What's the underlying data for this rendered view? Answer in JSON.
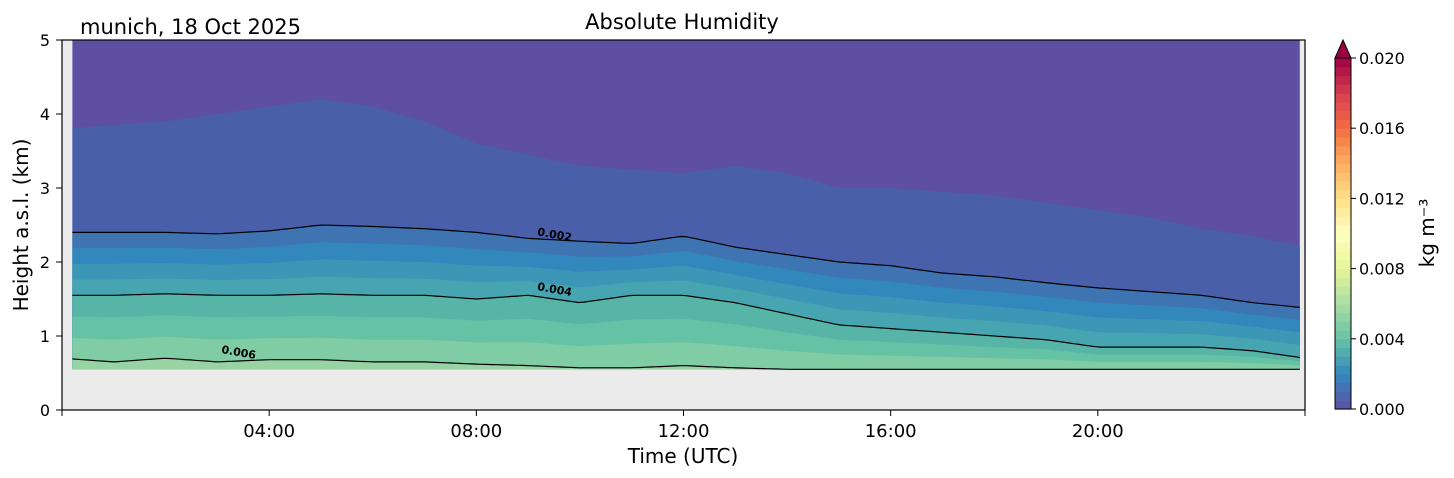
{
  "chart_data": {
    "type": "heatmap",
    "title": "Absolute Humidity",
    "subtitle": "munich, 18 Oct 2025",
    "xlabel": "Time (UTC)",
    "ylabel": "Height a.s.l. (km)",
    "xlim": [
      0,
      24
    ],
    "ylim": [
      0,
      5
    ],
    "x_ticks": [
      0,
      4,
      8,
      12,
      16,
      20,
      24
    ],
    "x_tick_labels": [
      "",
      "04:00",
      "08:00",
      "12:00",
      "16:00",
      "20:00",
      ""
    ],
    "y_ticks": [
      0,
      1,
      2,
      3,
      4,
      5
    ],
    "y_tick_labels": [
      "0",
      "1",
      "2",
      "3",
      "4",
      "5"
    ],
    "data_bottom_km": 0.55,
    "colorbar": {
      "label": "kg m⁻³",
      "min": 0.0,
      "max": 0.02,
      "ticks": [
        "0.000",
        "0.004",
        "0.008",
        "0.012",
        "0.016",
        "0.020"
      ],
      "extend": "max",
      "colormap": "Spectral_r"
    },
    "fill_levels": [
      0.0,
      0.001,
      0.002,
      0.0025,
      0.003,
      0.0035,
      0.004,
      0.0045,
      0.005,
      0.006
    ],
    "fill_colors": [
      "#5e4fa2",
      "#4a5fa9",
      "#3e74b2",
      "#3288bd",
      "#3b97b5",
      "#46a5b0",
      "#56b5a6",
      "#66c2a5",
      "#80cca5",
      "#98d4a3"
    ],
    "level_heights_km": {
      "hours": [
        0,
        1,
        2,
        3,
        4,
        5,
        6,
        7,
        8,
        9,
        10,
        11,
        12,
        13,
        14,
        15,
        16,
        17,
        18,
        19,
        20,
        21,
        22,
        23,
        24
      ],
      "0.001": [
        3.8,
        3.85,
        3.9,
        4.0,
        4.1,
        4.2,
        4.1,
        3.9,
        3.6,
        3.45,
        3.3,
        3.25,
        3.2,
        3.3,
        3.2,
        3.0,
        3.0,
        2.95,
        2.9,
        2.8,
        2.7,
        2.6,
        2.45,
        2.35,
        2.2
      ],
      "0.002": [
        2.4,
        2.4,
        2.4,
        2.38,
        2.42,
        2.5,
        2.48,
        2.45,
        2.4,
        2.32,
        2.28,
        2.25,
        2.35,
        2.2,
        2.1,
        2.0,
        1.95,
        1.85,
        1.8,
        1.72,
        1.65,
        1.6,
        1.55,
        1.45,
        1.38
      ],
      "0.004": [
        1.55,
        1.55,
        1.57,
        1.55,
        1.55,
        1.57,
        1.55,
        1.55,
        1.5,
        1.55,
        1.45,
        1.55,
        1.55,
        1.45,
        1.3,
        1.15,
        1.1,
        1.05,
        1.0,
        0.95,
        0.85,
        0.85,
        0.85,
        0.8,
        0.7
      ],
      "0.006": [
        0.7,
        0.65,
        0.7,
        0.65,
        0.68,
        0.68,
        0.65,
        0.65,
        0.62,
        0.6,
        0.57,
        0.57,
        0.6,
        0.57,
        0.55,
        0.55,
        0.55,
        0.55,
        0.55,
        0.55,
        0.55,
        0.55,
        0.55,
        0.55,
        0.55
      ]
    },
    "contour_labels": [
      {
        "level": "0.002",
        "x_hours": 9.5,
        "y_km": 2.32,
        "text": "0.002"
      },
      {
        "level": "0.004",
        "x_hours": 9.5,
        "y_km": 1.58,
        "text": "0.004"
      },
      {
        "level": "0.006",
        "x_hours": 3.4,
        "y_km": 0.73,
        "text": "0.006"
      }
    ]
  }
}
